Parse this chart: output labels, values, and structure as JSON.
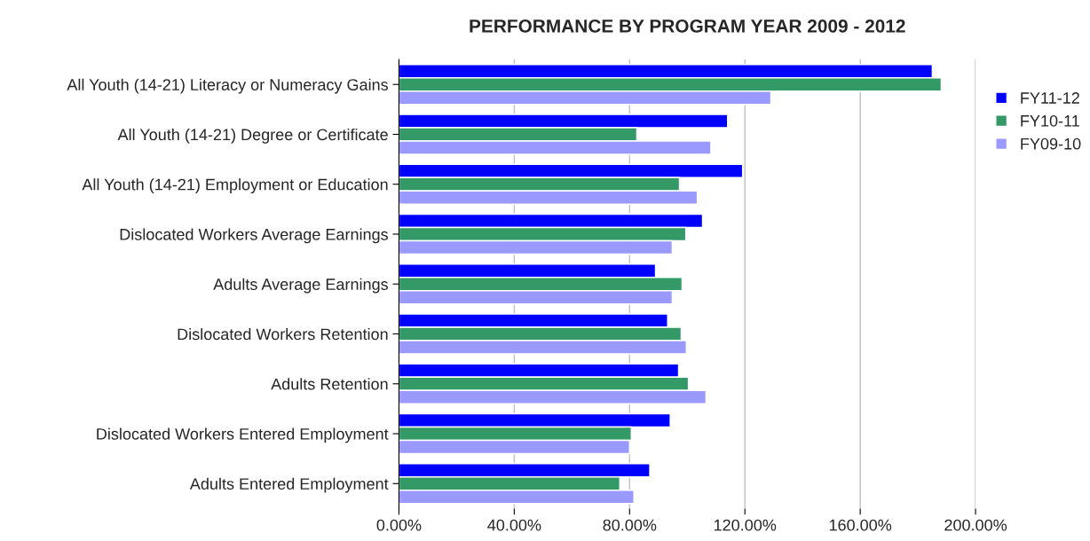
{
  "chart_data": {
    "type": "bar",
    "orientation": "horizontal",
    "title": "PERFORMANCE BY PROGRAM YEAR 2009 - 2012",
    "categories": [
      "All Youth (14-21) Literacy or Numeracy Gains",
      "All Youth (14-21) Degree or Certificate",
      "All Youth (14-21) Employment or Education",
      "Dislocated Workers Average Earnings",
      "Adults Average Earnings",
      "Dislocated Workers Retention",
      "Adults Retention",
      "Dislocated Workers Entered Employment",
      "Adults Entered Employment"
    ],
    "series": [
      {
        "name": "FY11-12",
        "color": "#0000ff",
        "values": [
          185.0,
          114.0,
          119.2,
          105.3,
          89.0,
          93.2,
          97.0,
          94.1,
          87.0
        ]
      },
      {
        "name": "FY10-11",
        "color": "#339966",
        "values": [
          188.1,
          82.5,
          97.3,
          99.5,
          98.2,
          97.9,
          100.4,
          80.6,
          76.6
        ]
      },
      {
        "name": "FY09-10",
        "color": "#9999ff",
        "values": [
          129.0,
          108.2,
          103.5,
          94.8,
          94.8,
          99.7,
          106.5,
          80.0,
          81.5
        ]
      }
    ],
    "xlim": [
      0,
      200
    ],
    "xticks": [
      {
        "value": 0,
        "label": "0.00%"
      },
      {
        "value": 40,
        "label": "40.00%"
      },
      {
        "value": 80,
        "label": "80.00%"
      },
      {
        "value": 120,
        "label": "120.00%"
      },
      {
        "value": 160,
        "label": "160.00%"
      },
      {
        "value": 200,
        "label": "200.00%"
      }
    ],
    "grid": "x",
    "legend": "right"
  }
}
